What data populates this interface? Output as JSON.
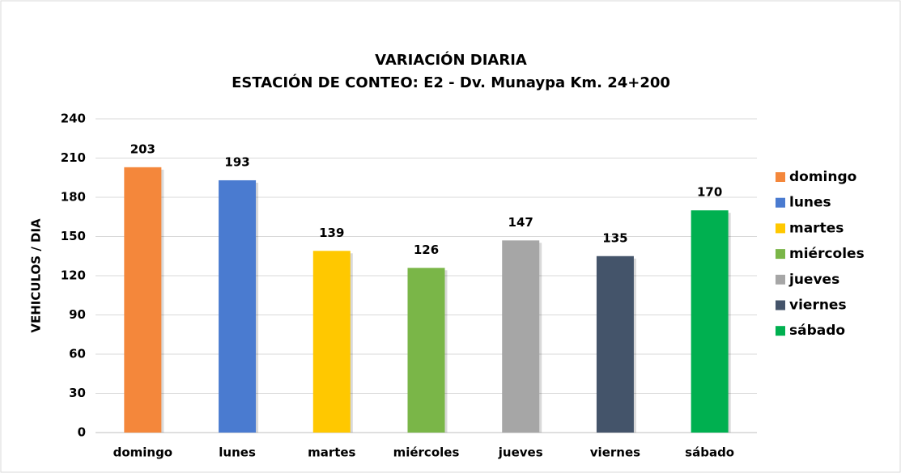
{
  "chart_data": {
    "type": "bar",
    "title": "VARIACIÓN DIARIA",
    "subtitle": "ESTACIÓN DE CONTEO: E2 - Dv. Munaypa Km. 24+200",
    "y_label": "VEHICULOS / DIA",
    "categories": [
      "domingo",
      "lunes",
      "martes",
      "miércoles",
      "jueves",
      "viernes",
      "sábado"
    ],
    "values": [
      203,
      193,
      139,
      126,
      147,
      135,
      170
    ],
    "colors": [
      "#f4873b",
      "#4a7bd0",
      "#ffc800",
      "#7ab648",
      "#a6a6a6",
      "#44546a",
      "#00b050"
    ],
    "ylim": [
      0,
      240
    ],
    "yticks": [
      0,
      30,
      60,
      90,
      120,
      150,
      180,
      210,
      240
    ],
    "grid": true,
    "legend": "right"
  }
}
